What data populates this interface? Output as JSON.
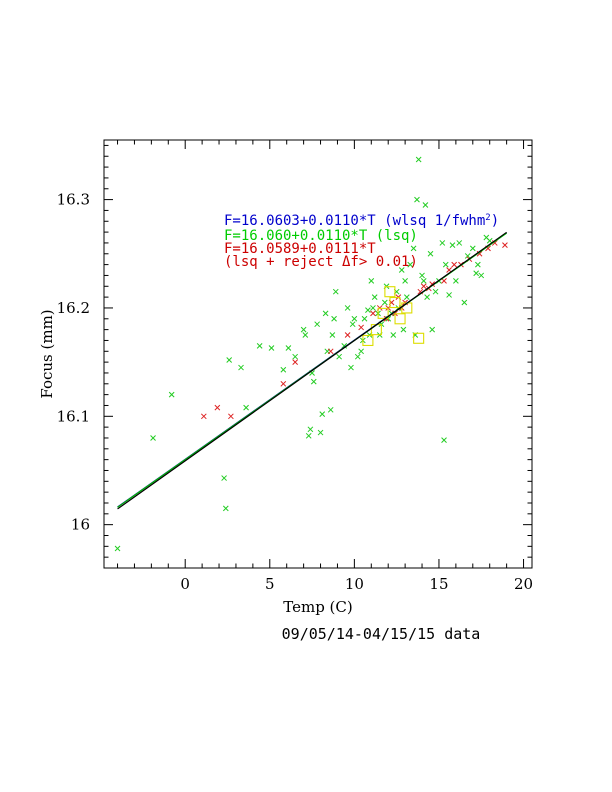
{
  "chart_data": {
    "type": "scatter",
    "xlabel": "Temp (C)",
    "ylabel": "Focus (mm)",
    "caption": "09/05/14-04/15/15 data",
    "xlim": [
      -4.8,
      20.5
    ],
    "ylim": [
      15.96,
      16.355
    ],
    "xticks": [
      0,
      5,
      10,
      15,
      20
    ],
    "yticks": [
      16,
      16.1,
      16.2,
      16.3
    ],
    "ytick_labels": [
      "16",
      "16.1",
      "16.2",
      "16.3"
    ],
    "annotations": [
      {
        "text": "F=16.0603+0.0110*T (wlsq 1/fwhm",
        "sup": "2",
        "tail": ")",
        "color": "#0000cc"
      },
      {
        "text": "F=16.060+0.0110*T (lsq)",
        "sup": "",
        "tail": "",
        "color": "#00cc00"
      },
      {
        "text": "F=16.0589+0.0111*T",
        "sup": "",
        "tail": "",
        "color": "#cc0000"
      },
      {
        "text": "(lsq + reject Δf> 0.01)",
        "sup": "",
        "tail": "",
        "color": "#cc0000"
      }
    ],
    "fits": [
      {
        "name": "wlsq",
        "intercept": 16.0603,
        "slope": 0.011,
        "color": "#0000aa",
        "x": [
          -4.0,
          19.0
        ]
      },
      {
        "name": "lsq",
        "intercept": 16.06,
        "slope": 0.011,
        "color": "#00bb00",
        "x": [
          -4.0,
          19.0
        ]
      },
      {
        "name": "lsq-reject",
        "intercept": 16.0589,
        "slope": 0.0111,
        "color": "#000000",
        "x": [
          -4.0,
          19.0
        ]
      }
    ],
    "series": [
      {
        "marker": "x",
        "color": "#22cc22",
        "points": [
          [
            -4.0,
            15.978
          ],
          [
            -1.9,
            16.08
          ],
          [
            -0.8,
            16.12
          ],
          [
            2.3,
            16.043
          ],
          [
            2.4,
            16.015
          ],
          [
            2.6,
            16.152
          ],
          [
            3.3,
            16.145
          ],
          [
            3.6,
            16.108
          ],
          [
            4.4,
            16.165
          ],
          [
            5.1,
            16.163
          ],
          [
            5.8,
            16.143
          ],
          [
            6.1,
            16.163
          ],
          [
            6.5,
            16.155
          ],
          [
            7.0,
            16.18
          ],
          [
            7.1,
            16.175
          ],
          [
            7.3,
            16.082
          ],
          [
            7.4,
            16.088
          ],
          [
            7.5,
            16.14
          ],
          [
            7.6,
            16.132
          ],
          [
            7.8,
            16.185
          ],
          [
            8.0,
            16.085
          ],
          [
            8.1,
            16.102
          ],
          [
            8.3,
            16.195
          ],
          [
            8.4,
            16.16
          ],
          [
            8.6,
            16.106
          ],
          [
            8.7,
            16.175
          ],
          [
            8.8,
            16.19
          ],
          [
            8.9,
            16.215
          ],
          [
            9.1,
            16.155
          ],
          [
            9.4,
            16.165
          ],
          [
            9.6,
            16.2
          ],
          [
            9.8,
            16.145
          ],
          [
            9.9,
            16.185
          ],
          [
            10.0,
            16.19
          ],
          [
            10.2,
            16.155
          ],
          [
            10.4,
            16.16
          ],
          [
            10.5,
            16.17
          ],
          [
            10.6,
            16.19
          ],
          [
            10.8,
            16.198
          ],
          [
            10.9,
            16.175
          ],
          [
            11.0,
            16.225
          ],
          [
            11.1,
            16.2
          ],
          [
            11.2,
            16.21
          ],
          [
            11.4,
            16.195
          ],
          [
            11.5,
            16.175
          ],
          [
            11.6,
            16.185
          ],
          [
            11.8,
            16.205
          ],
          [
            11.9,
            16.22
          ],
          [
            12.0,
            16.19
          ],
          [
            12.2,
            16.195
          ],
          [
            12.3,
            16.175
          ],
          [
            12.5,
            16.215
          ],
          [
            12.6,
            16.2
          ],
          [
            12.8,
            16.235
          ],
          [
            12.9,
            16.18
          ],
          [
            13.0,
            16.225
          ],
          [
            13.1,
            16.21
          ],
          [
            13.3,
            16.24
          ],
          [
            13.5,
            16.255
          ],
          [
            13.6,
            16.175
          ],
          [
            13.7,
            16.3
          ],
          [
            13.8,
            16.337
          ],
          [
            14.0,
            16.23
          ],
          [
            14.1,
            16.225
          ],
          [
            14.2,
            16.295
          ],
          [
            14.3,
            16.21
          ],
          [
            14.5,
            16.25
          ],
          [
            14.6,
            16.18
          ],
          [
            14.8,
            16.215
          ],
          [
            15.0,
            16.225
          ],
          [
            15.2,
            16.26
          ],
          [
            15.3,
            16.078
          ],
          [
            15.4,
            16.24
          ],
          [
            15.6,
            16.212
          ],
          [
            15.8,
            16.258
          ],
          [
            16.0,
            16.225
          ],
          [
            16.2,
            16.26
          ],
          [
            16.5,
            16.205
          ],
          [
            16.7,
            16.248
          ],
          [
            17.0,
            16.255
          ],
          [
            17.2,
            16.232
          ],
          [
            17.3,
            16.24
          ],
          [
            17.5,
            16.23
          ],
          [
            17.8,
            16.265
          ],
          [
            18.0,
            16.262
          ]
        ]
      },
      {
        "marker": "x",
        "color": "#dd2222",
        "points": [
          [
            1.1,
            16.1
          ],
          [
            1.9,
            16.108
          ],
          [
            2.7,
            16.1
          ],
          [
            5.8,
            16.13
          ],
          [
            6.5,
            16.15
          ],
          [
            8.6,
            16.16
          ],
          [
            9.6,
            16.175
          ],
          [
            10.4,
            16.182
          ],
          [
            11.1,
            16.195
          ],
          [
            11.5,
            16.2
          ],
          [
            11.9,
            16.19
          ],
          [
            12.0,
            16.2
          ],
          [
            12.2,
            16.205
          ],
          [
            12.4,
            16.195
          ],
          [
            12.6,
            16.21
          ],
          [
            12.8,
            16.2
          ],
          [
            13.0,
            16.205
          ],
          [
            13.9,
            16.215
          ],
          [
            14.1,
            16.22
          ],
          [
            14.4,
            16.218
          ],
          [
            14.6,
            16.222
          ],
          [
            15.3,
            16.225
          ],
          [
            15.6,
            16.235
          ],
          [
            15.9,
            16.24
          ],
          [
            16.3,
            16.24
          ],
          [
            16.8,
            16.245
          ],
          [
            17.4,
            16.25
          ],
          [
            17.9,
            16.255
          ],
          [
            18.3,
            16.26
          ],
          [
            18.9,
            16.258
          ]
        ]
      },
      {
        "marker": "square",
        "color": "#dddd00",
        "points": [
          [
            10.8,
            16.17
          ],
          [
            11.3,
            16.18
          ],
          [
            11.7,
            16.195
          ],
          [
            12.1,
            16.215
          ],
          [
            12.4,
            16.205
          ],
          [
            12.7,
            16.19
          ],
          [
            13.1,
            16.2
          ],
          [
            13.8,
            16.172
          ]
        ]
      }
    ]
  }
}
